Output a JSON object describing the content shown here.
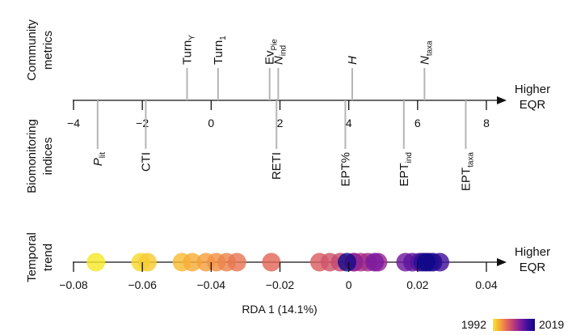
{
  "chart_data": [
    {
      "type": "scatter",
      "panel": "community-vs-biomonitoring",
      "axis": {
        "ticks": [
          -4,
          -2,
          0,
          2,
          4,
          6,
          8
        ],
        "xlim": [
          -4,
          8
        ],
        "direction_label": [
          "Higher",
          "EQR"
        ]
      },
      "groups": {
        "upper": [
          "Community",
          "metrics"
        ],
        "lower": [
          "Biomonitoring",
          "indices"
        ]
      },
      "upper_metrics": [
        {
          "label": "Turn",
          "sub": "Y",
          "italic": false,
          "x": -0.7,
          "length": 1.0
        },
        {
          "label": "Turn",
          "sub": "1",
          "italic": false,
          "x": 0.2,
          "length": 1.0
        },
        {
          "label": "Ev",
          "sub": "Pie",
          "italic": false,
          "x": 1.7,
          "length": 1.0
        },
        {
          "label": "N",
          "sub": "ind",
          "italic": true,
          "x": 1.95,
          "length": 1.0
        },
        {
          "label": "H",
          "sub": "",
          "italic": true,
          "x": 4.1,
          "length": 1.0
        },
        {
          "label": "N",
          "sub": "taxa",
          "italic": true,
          "x": 6.2,
          "length": 1.0
        }
      ],
      "lower_indices": [
        {
          "label": "P",
          "sub": "lit",
          "italic": true,
          "x": -3.3,
          "length": 1.0
        },
        {
          "label": "CTI",
          "sub": "",
          "italic": false,
          "x": -1.9,
          "length": 1.0
        },
        {
          "label": "RETI",
          "sub": "",
          "italic": false,
          "x": 1.9,
          "length": 1.0
        },
        {
          "label": "EPT%",
          "sub": "",
          "italic": false,
          "x": 3.9,
          "length": 1.0
        },
        {
          "label": "EPT",
          "sub": "ind",
          "italic": false,
          "x": 5.6,
          "length": 1.0
        },
        {
          "label": "EPT",
          "sub": "taxa",
          "italic": false,
          "x": 7.4,
          "length": 1.0
        }
      ]
    },
    {
      "type": "scatter",
      "panel": "temporal-trend",
      "axis": {
        "ticks": [
          -0.08,
          -0.06,
          -0.04,
          -0.02,
          0,
          0.02,
          0.04
        ],
        "tick_labels": [
          "−0.08",
          "−0.06",
          "−0.04",
          "−0.02",
          "0",
          "0.02",
          "0.04"
        ],
        "xlim": [
          -0.08,
          0.04
        ],
        "direction_label": [
          "Higher",
          "EQR"
        ],
        "xlabel": "RDA 1 (14.1%)"
      },
      "group": [
        "Temporal",
        "trend"
      ],
      "points": [
        {
          "year": 1992,
          "x": -0.0735
        },
        {
          "year": 1993,
          "x": -0.0605
        },
        {
          "year": 1994,
          "x": -0.0585
        },
        {
          "year": 1995,
          "x": -0.0485
        },
        {
          "year": 1996,
          "x": -0.0455
        },
        {
          "year": 1997,
          "x": -0.0415
        },
        {
          "year": 1998,
          "x": -0.0385
        },
        {
          "year": 1999,
          "x": -0.0355
        },
        {
          "year": 2000,
          "x": -0.0325
        },
        {
          "year": 2001,
          "x": -0.0225
        },
        {
          "year": 2002,
          "x": -0.0085
        },
        {
          "year": 2003,
          "x": -0.0055
        },
        {
          "year": 2004,
          "x": -0.0025
        },
        {
          "year": 2005,
          "x": 0.0015
        },
        {
          "year": 2006,
          "x": 0.0035
        },
        {
          "year": 2007,
          "x": 0.0055
        },
        {
          "year": 2008,
          "x": 0.0085
        },
        {
          "year": 2009,
          "x": 0.0015
        },
        {
          "year": 2010,
          "x": 0.0075
        },
        {
          "year": 2011,
          "x": 0.0165
        },
        {
          "year": 2012,
          "x": 0.0185
        },
        {
          "year": 2013,
          "x": 0.0205
        },
        {
          "year": 2014,
          "x": 0.0265
        },
        {
          "year": 2015,
          "x": 0.0235
        },
        {
          "year": 2016,
          "x": 0.0215
        },
        {
          "year": 2017,
          "x": 0.0245
        },
        {
          "year": 2018,
          "x": -0.0005
        },
        {
          "year": 2019,
          "x": 0.0225
        }
      ],
      "colorbar": {
        "min_label": "1992",
        "max_label": "2019",
        "min": 1992,
        "max": 2019,
        "colormap": "plasma-reversed",
        "stops": [
          "#f5e82a",
          "#f8a63b",
          "#e3685a",
          "#b63a7d",
          "#7d1aa0",
          "#3b0f9a",
          "#0d0887"
        ]
      }
    }
  ]
}
